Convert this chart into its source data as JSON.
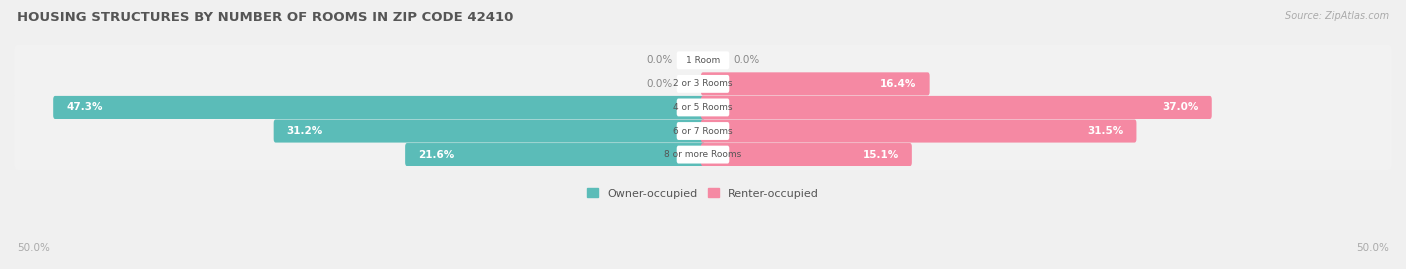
{
  "title": "HOUSING STRUCTURES BY NUMBER OF ROOMS IN ZIP CODE 42410",
  "source": "Source: ZipAtlas.com",
  "categories": [
    "1 Room",
    "2 or 3 Rooms",
    "4 or 5 Rooms",
    "6 or 7 Rooms",
    "8 or more Rooms"
  ],
  "owner_values": [
    0.0,
    0.0,
    47.3,
    31.2,
    21.6
  ],
  "renter_values": [
    0.0,
    16.4,
    37.0,
    31.5,
    15.1
  ],
  "owner_color": "#5bbcb8",
  "renter_color": "#f589a3",
  "bg_color": "#f0f0f0",
  "row_bg_color": "#f7f7f7",
  "xlim": 50.0,
  "x_axis_left_label": "50.0%",
  "x_axis_right_label": "50.0%"
}
